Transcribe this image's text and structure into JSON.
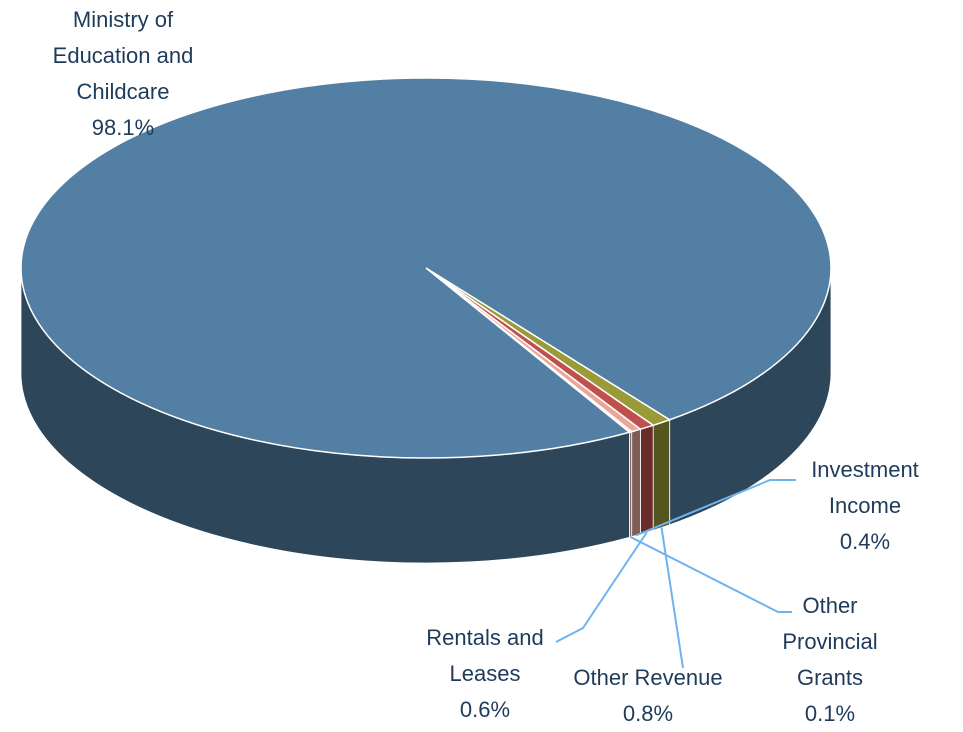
{
  "chart_data": {
    "type": "pie",
    "categories": [
      "Other Revenue",
      "Rentals and Leases",
      "Investment Income",
      "Other Provincial Grants",
      "Ministry of Education and Childcare"
    ],
    "values": [
      0.8,
      0.6,
      0.4,
      0.1,
      98.1
    ],
    "value_labels": [
      "0.8%",
      "0.6%",
      "0.4%",
      "0.1%",
      "98.1%"
    ],
    "colors": [
      "#9a9a38",
      "#c0504d",
      "#e9a79a",
      "#f0c8b8",
      "#527fa3"
    ]
  }
}
